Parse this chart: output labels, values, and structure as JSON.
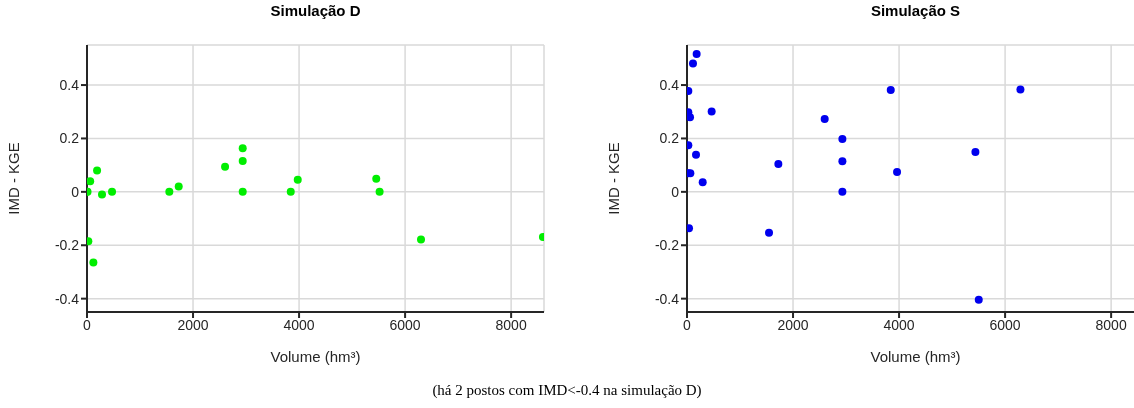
{
  "chart_data": [
    {
      "type": "scatter",
      "title": "Simulação D",
      "xlabel": "Volume (hm³)",
      "ylabel": "IMD - KGE",
      "color": "#00ee00",
      "marker": "circle",
      "grid": true,
      "x": [
        10,
        60,
        0,
        190,
        283,
        472,
        25,
        120,
        1553,
        1730,
        2604,
        2937,
        2937,
        2937,
        3843,
        3975,
        5456,
        5519,
        6300,
        8600
      ],
      "values": [
        0,
        0.04,
        0,
        0.08,
        -0.01,
        0,
        -0.185,
        -0.265,
        0,
        0.02,
        0.094,
        0.163,
        0.116,
        0,
        0,
        0.045,
        0.049,
        0,
        -0.178,
        -0.169
      ],
      "xlim": [
        0,
        8620
      ],
      "xticks": [
        0,
        2000,
        4000,
        6000,
        8000
      ],
      "ylim": [
        -0.45,
        0.55
      ],
      "yticks": [
        -0.4,
        -0.2,
        0,
        0.2,
        0.4
      ],
      "annotations": [
        "(há 2 postos com IMD<-0.4 na simulação D)"
      ]
    },
    {
      "type": "scatter",
      "title": "Simulação S",
      "xlabel": "Volume (hm³)",
      "ylabel": "IMD - KGE",
      "color": "#0000ee",
      "marker": "circle",
      "grid": true,
      "x": [
        182,
        113,
        25,
        25,
        57,
        465,
        25,
        170,
        63,
        25,
        296,
        38,
        1547,
        1723,
        2597,
        2931,
        2931,
        2931,
        3843,
        3962,
        5440,
        5503,
        6289
      ],
      "values": [
        0.516,
        0.481,
        0.378,
        0.298,
        0.279,
        0.301,
        0.175,
        0.139,
        0.07,
        0.07,
        0.036,
        -0.136,
        -0.153,
        0.104,
        0.273,
        0.198,
        0.115,
        0,
        0.381,
        0.074,
        0.149,
        -0.404,
        0.383
      ],
      "xlim": [
        0,
        8620
      ],
      "xticks": [
        0,
        2000,
        4000,
        6000,
        8000
      ],
      "ylim": [
        -0.45,
        0.55
      ],
      "yticks": [
        -0.4,
        -0.2,
        0,
        0.2,
        0.4
      ]
    }
  ]
}
